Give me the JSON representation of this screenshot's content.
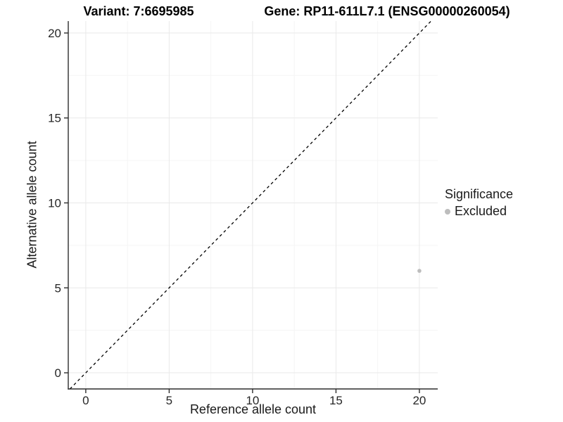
{
  "chart_data": {
    "type": "scatter",
    "titles": {
      "left": "Variant: 7:6695985",
      "right": "Gene: RP11-611L7.1 (ENSG00000260054)"
    },
    "xlabel": "Reference allele count",
    "ylabel": "Alternative allele count",
    "xlim": [
      -1.05,
      21.1
    ],
    "ylim": [
      -0.95,
      20.7
    ],
    "x_ticks": [
      0,
      5,
      10,
      15,
      20
    ],
    "y_ticks": [
      0,
      5,
      10,
      15,
      20
    ],
    "minor_gridlines": [
      2.5,
      7.5,
      12.5,
      17.5
    ],
    "grid": "major+minor",
    "identity_line": {
      "style": "dashed",
      "color": "#000000"
    },
    "series": [
      {
        "name": "Excluded",
        "color": "#bdbdbd",
        "points": [
          {
            "x": 20,
            "y": 6
          }
        ]
      }
    ],
    "legend": {
      "title": "Significance",
      "position": "right",
      "items": [
        {
          "label": "Excluded",
          "color": "#bdbdbd"
        }
      ]
    },
    "colors": {
      "axis_line": "#2d2d2d",
      "tick_mark": "#2d2d2d",
      "tick_label": "#262626",
      "grid_major": "#e9e9e9",
      "grid_minor": "#f5f5f5",
      "background": "#ffffff"
    }
  }
}
